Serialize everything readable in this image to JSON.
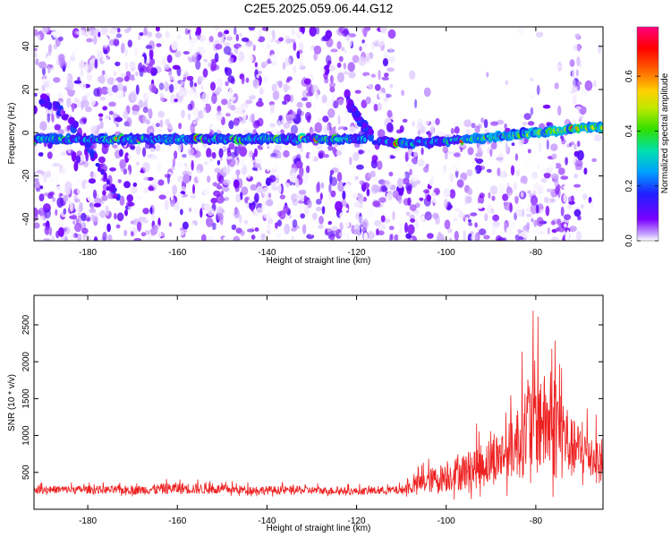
{
  "title": "C2E5.2025.059.06.44.G12",
  "chart_data": [
    {
      "type": "heatmap",
      "xlabel": "Height of straight line (km)",
      "ylabel": "Frequency (Hz)",
      "xlim": [
        -192,
        -65
      ],
      "ylim": [
        -50,
        49
      ],
      "xticks": [
        -180,
        -160,
        -140,
        -120,
        -100,
        -80
      ],
      "yticks": [
        -40,
        -20,
        0,
        20,
        40
      ],
      "colorbar": {
        "label": "Normalized spectral amplitude",
        "range": [
          0.0,
          0.78
        ],
        "ticks": [
          0.0,
          0.2,
          0.4,
          0.6
        ],
        "colormap": [
          "#ffffff",
          "#b080ff",
          "#7a00ff",
          "#2020ff",
          "#00c0ff",
          "#00e0a0",
          "#40e000",
          "#e0e000",
          "#ff8000",
          "#ff0000",
          "#ff0080"
        ]
      },
      "ridge": {
        "description_points_x": [
          -192,
          -170,
          -150,
          -130,
          -118,
          -110,
          -100,
          -90,
          -80,
          -70,
          -65
        ],
        "description_points_y": [
          -3,
          -3,
          -3,
          -3,
          -3,
          -5,
          -4,
          -2,
          0,
          2,
          3
        ]
      },
      "branches": [
        {
          "x": [
            -192,
            -185,
            -180,
            -176,
            -173
          ],
          "y": [
            18,
            8,
            -5,
            -22,
            -30
          ]
        },
        {
          "x": [
            -122,
            -119,
            -116
          ],
          "y": [
            14,
            5,
            -3
          ]
        }
      ]
    },
    {
      "type": "line",
      "xlabel": "Height of straight line (km)",
      "ylabel": "SNR (10 * v/v)",
      "xlim": [
        -192,
        -65
      ],
      "ylim": [
        0,
        2900
      ],
      "xticks": [
        -180,
        -160,
        -140,
        -120,
        -100,
        -80
      ],
      "yticks": [
        500,
        1000,
        1500,
        2000,
        2500
      ],
      "color": "#ee2222",
      "envelope": {
        "x": [
          -192,
          -180,
          -170,
          -160,
          -150,
          -140,
          -130,
          -120,
          -110,
          -105,
          -100,
          -95,
          -90,
          -85,
          -82,
          -80,
          -78,
          -75,
          -72,
          -68,
          -65
        ],
        "baseline": [
          250,
          250,
          240,
          260,
          250,
          240,
          240,
          230,
          240,
          320,
          380,
          450,
          550,
          700,
          900,
          1000,
          950,
          900,
          700,
          650,
          500
        ],
        "amplitude": [
          120,
          120,
          130,
          180,
          140,
          130,
          120,
          110,
          130,
          350,
          450,
          600,
          750,
          900,
          1500,
          1800,
          1500,
          1700,
          900,
          800,
          600
        ]
      }
    }
  ]
}
